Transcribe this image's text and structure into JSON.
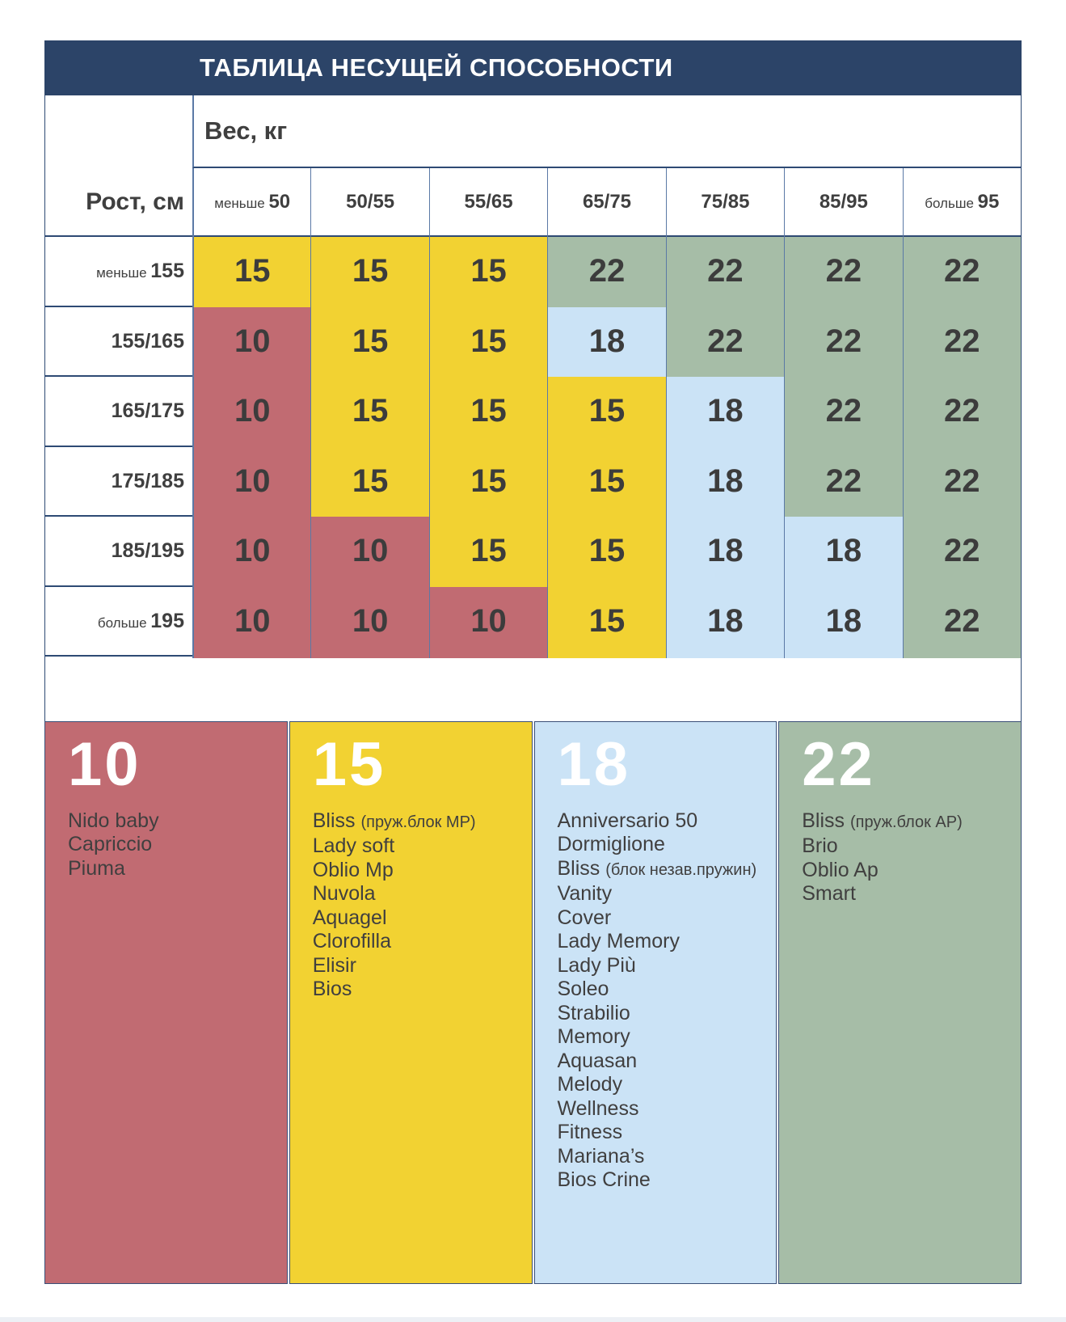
{
  "page_title": "ТАБЛИЦА НЕСУЩЕЙ СПОСОБНОСТИ",
  "colors": {
    "header_navy": "#2c4468",
    "border_navy": "#2e4a74",
    "grid_blue": "#5b79a6",
    "footer_strip": "#edf0f5",
    "cell_text": "#3c3c3c"
  },
  "chart_data": {
    "type": "table",
    "title": "ТАБЛИЦА НЕСУЩЕЙ СПОСОБНОСТИ",
    "x_axis_label": "Вес, кг",
    "y_axis_label": "Рост, см",
    "columns": [
      "меньше 50",
      "50/55",
      "55/65",
      "65/75",
      "75/85",
      "85/95",
      "больше 95"
    ],
    "rows": [
      "меньше 155",
      "155/165",
      "165/175",
      "175/185",
      "185/195",
      "больше 195"
    ],
    "values": [
      [
        15,
        15,
        15,
        22,
        22,
        22,
        22
      ],
      [
        10,
        15,
        15,
        18,
        22,
        22,
        22
      ],
      [
        10,
        15,
        15,
        15,
        18,
        22,
        22
      ],
      [
        10,
        15,
        15,
        15,
        18,
        22,
        22
      ],
      [
        10,
        10,
        15,
        15,
        18,
        18,
        22
      ],
      [
        10,
        10,
        10,
        15,
        18,
        18,
        22
      ]
    ],
    "cell_colors_by_value": {
      "10": "#c16b72",
      "15": "#f2d232",
      "18": "#cbe3f6",
      "22": "#a6bda7"
    },
    "legend_position": "bottom"
  },
  "legend": [
    {
      "value": "10",
      "color": "#c16b72",
      "items": [
        "Nido baby",
        "Capriccio",
        "Piuma"
      ]
    },
    {
      "value": "15",
      "color": "#f2d232",
      "items": [
        "Bliss (пруж.блок МР)",
        "Lady soft",
        "Oblio Mp",
        "Nuvola",
        "Aquagel",
        "Clorofilla",
        "Elisir",
        "Bios"
      ]
    },
    {
      "value": "18",
      "color": "#cbe3f6",
      "items": [
        "Anniversario 50",
        "Dormiglione",
        "Bliss (блок незав.пружин)",
        "Vanity",
        "Cover",
        "Lady Memory",
        "Lady Più",
        "Soleo",
        "Strabilio",
        "Memory",
        "Aquasan",
        "Melody",
        "Wellness",
        "Fitness",
        "Mariana’s",
        "Bios Crine"
      ]
    },
    {
      "value": "22",
      "color": "#a6bda7",
      "items": [
        "Bliss (пруж.блок АР)",
        "Brio",
        "Oblio Ap",
        "Smart"
      ]
    }
  ]
}
